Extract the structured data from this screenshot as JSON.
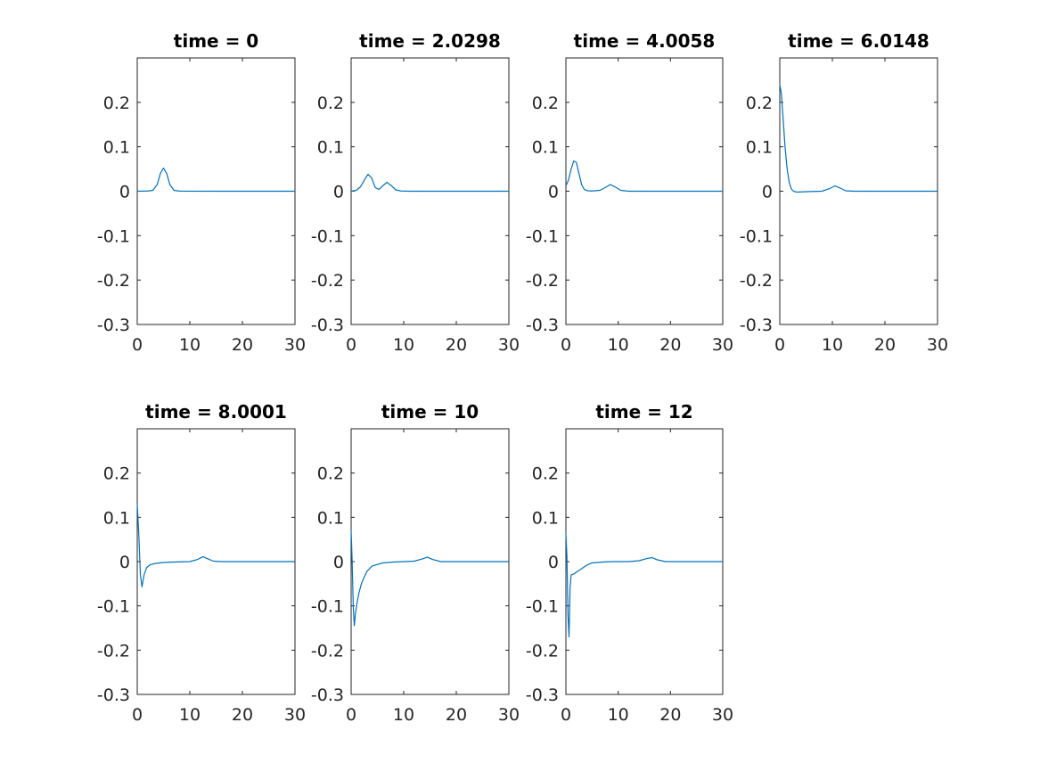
{
  "chart_data": [
    {
      "type": "line",
      "title": "time = 0",
      "xlim": [
        0,
        30
      ],
      "ylim": [
        -0.3,
        0.3
      ],
      "xticks": [
        "0",
        "10",
        "20",
        "30"
      ],
      "yticks": [
        "0.2",
        "0.1",
        "0",
        "-0.1",
        "-0.2",
        "-0.3"
      ],
      "color": "#0072bd",
      "series": [
        {
          "x": [
            0,
            2,
            3,
            3.8,
            4.4,
            5.0,
            5.6,
            6.2,
            7,
            8,
            15,
            30
          ],
          "y": [
            0,
            0.0005,
            0.002,
            0.015,
            0.04,
            0.052,
            0.04,
            0.015,
            0.002,
            0.0003,
            0,
            0
          ]
        }
      ]
    },
    {
      "type": "line",
      "title": "time = 2.0298",
      "xlim": [
        0,
        30
      ],
      "ylim": [
        -0.3,
        0.3
      ],
      "xticks": [
        "0",
        "10",
        "20",
        "30"
      ],
      "yticks": [
        "0.2",
        "0.1",
        "0",
        "-0.1",
        "-0.2",
        "-0.3"
      ],
      "color": "#0072bd",
      "series": [
        {
          "x": [
            0,
            1,
            1.8,
            2.5,
            3.2,
            3.9,
            4.6,
            5.3,
            6.0,
            6.8,
            7.6,
            8.5,
            9.5,
            11,
            15,
            30
          ],
          "y": [
            0,
            0.002,
            0.01,
            0.025,
            0.038,
            0.03,
            0.008,
            0.004,
            0.012,
            0.02,
            0.013,
            0.003,
            0.0005,
            0,
            0,
            0
          ]
        }
      ]
    },
    {
      "type": "line",
      "title": "time = 4.0058",
      "xlim": [
        0,
        30
      ],
      "ylim": [
        -0.3,
        0.3
      ],
      "xticks": [
        "0",
        "10",
        "20",
        "30"
      ],
      "yticks": [
        "0.2",
        "0.1",
        "0",
        "-0.1",
        "-0.2",
        "-0.3"
      ],
      "color": "#0072bd",
      "series": [
        {
          "x": [
            0,
            0.5,
            1.0,
            1.5,
            2.0,
            2.5,
            3.0,
            3.5,
            4.2,
            5,
            6.5,
            7.5,
            8.5,
            9.5,
            10.5,
            12,
            30
          ],
          "y": [
            0.012,
            0.025,
            0.05,
            0.068,
            0.065,
            0.04,
            0.015,
            0.004,
            0.001,
            0.0005,
            0.002,
            0.008,
            0.015,
            0.009,
            0.002,
            0,
            0
          ]
        }
      ]
    },
    {
      "type": "line",
      "title": "time = 6.0148",
      "xlim": [
        0,
        30
      ],
      "ylim": [
        -0.3,
        0.3
      ],
      "xticks": [
        "0",
        "10",
        "20",
        "30"
      ],
      "yticks": [
        "0.2",
        "0.1",
        "0",
        "-0.1",
        "-0.2",
        "-0.3"
      ],
      "color": "#0072bd",
      "series": [
        {
          "x": [
            0,
            0.3,
            0.6,
            1.0,
            1.4,
            1.8,
            2.2,
            2.6,
            3.2,
            5,
            8,
            9.5,
            10.5,
            11.5,
            12.5,
            14,
            30
          ],
          "y": [
            0.24,
            0.22,
            0.17,
            0.1,
            0.05,
            0.02,
            0.005,
            0,
            -0.002,
            -0.001,
            0,
            0.006,
            0.012,
            0.007,
            0.001,
            0,
            0
          ]
        }
      ]
    },
    {
      "type": "line",
      "title": "time = 8.0001",
      "xlim": [
        0,
        30
      ],
      "ylim": [
        -0.3,
        0.3
      ],
      "xticks": [
        "0",
        "10",
        "20",
        "30"
      ],
      "yticks": [
        "0.2",
        "0.1",
        "0",
        "-0.1",
        "-0.2",
        "-0.3"
      ],
      "color": "#0072bd",
      "series": [
        {
          "x": [
            0,
            0.3,
            0.6,
            0.9,
            1.3,
            1.8,
            2.5,
            3.5,
            5,
            7,
            10,
            11.5,
            12.5,
            13.5,
            14.5,
            16,
            30
          ],
          "y": [
            0.13,
            0.06,
            -0.03,
            -0.057,
            -0.03,
            -0.013,
            -0.007,
            -0.004,
            -0.002,
            -0.001,
            0,
            0.005,
            0.011,
            0.006,
            0.001,
            0,
            0
          ]
        }
      ]
    },
    {
      "type": "line",
      "title": "time = 10",
      "xlim": [
        0,
        30
      ],
      "ylim": [
        -0.3,
        0.3
      ],
      "xticks": [
        "0",
        "10",
        "20",
        "30"
      ],
      "yticks": [
        "0.2",
        "0.1",
        "0",
        "-0.1",
        "-0.2",
        "-0.3"
      ],
      "color": "#0072bd",
      "series": [
        {
          "x": [
            0,
            0.2,
            0.4,
            0.6,
            0.8,
            1.1,
            1.5,
            2.0,
            3.0,
            4.0,
            6.0,
            8.0,
            10,
            12,
            13.5,
            14.5,
            15.5,
            17,
            30
          ],
          "y": [
            0.07,
            0.0,
            -0.1,
            -0.145,
            -0.12,
            -0.095,
            -0.07,
            -0.048,
            -0.022,
            -0.01,
            -0.003,
            -0.001,
            0,
            0.001,
            0.006,
            0.01,
            0.005,
            0,
            0
          ]
        }
      ]
    },
    {
      "type": "line",
      "title": "time = 12",
      "xlim": [
        0,
        30
      ],
      "ylim": [
        -0.3,
        0.3
      ],
      "xticks": [
        "0",
        "10",
        "20",
        "30"
      ],
      "yticks": [
        "0.2",
        "0.1",
        "0",
        "-0.1",
        "-0.2",
        "-0.3"
      ],
      "color": "#0072bd",
      "series": [
        {
          "x": [
            0,
            0.2,
            0.4,
            0.6,
            0.8,
            1.0,
            1.5,
            2.0,
            3.0,
            4.0,
            5.0,
            7.0,
            9.0,
            12,
            14,
            15.5,
            16.5,
            17.5,
            19,
            30
          ],
          "y": [
            0.065,
            0.01,
            -0.12,
            -0.17,
            -0.06,
            -0.03,
            -0.028,
            -0.024,
            -0.016,
            -0.008,
            -0.003,
            -0.001,
            0,
            0,
            0.002,
            0.007,
            0.009,
            0.004,
            0,
            0
          ]
        }
      ]
    }
  ]
}
